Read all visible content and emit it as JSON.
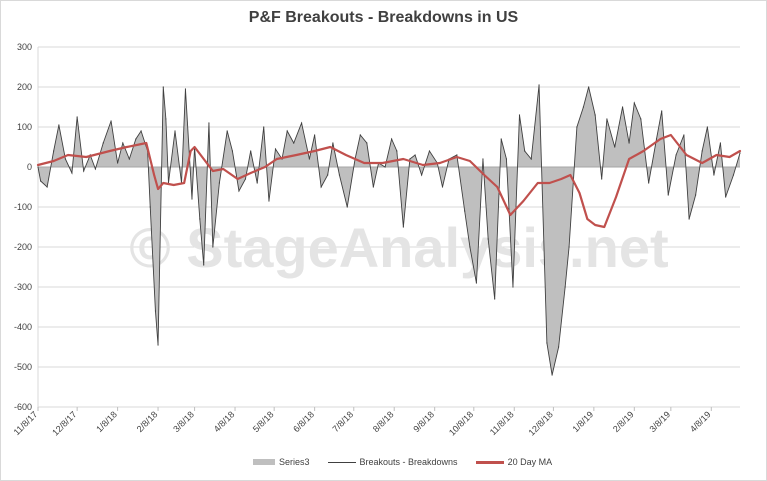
{
  "chart_data": {
    "type": "area",
    "title": "P&F Breakouts - Breakdowns in US",
    "watermark": "© StageAnalysis.net",
    "ylim": [
      -600,
      300
    ],
    "yticks": [
      300,
      200,
      100,
      0,
      -100,
      -200,
      -300,
      -400,
      -500,
      -600
    ],
    "xlim": [
      "2017-11-08",
      "2019-04-30"
    ],
    "xtick_labels": [
      "11/8/17",
      "12/8/17",
      "1/8/18",
      "2/8/18",
      "3/8/18",
      "4/8/18",
      "5/8/18",
      "6/8/18",
      "7/8/18",
      "8/8/18",
      "9/8/18",
      "10/8/18",
      "11/8/18",
      "12/8/18",
      "1/8/19",
      "2/8/19",
      "3/8/19",
      "4/8/19"
    ],
    "grid": true,
    "legend_position": "bottom",
    "colors": {
      "series3": "#bfbfbf",
      "breakouts": "#404040",
      "ma": "#c0504d"
    },
    "series": [
      {
        "name": "Series3",
        "style": "area",
        "same_values_as": "Breakouts - Breakdowns"
      },
      {
        "name": "Breakouts - Breakdowns",
        "style": "line",
        "x": [
          "2017-11-08",
          "2017-11-10",
          "2017-11-15",
          "2017-11-20",
          "2017-11-24",
          "2017-11-29",
          "2017-12-04",
          "2017-12-08",
          "2017-12-13",
          "2017-12-18",
          "2017-12-22",
          "2017-12-28",
          "2018-01-03",
          "2018-01-08",
          "2018-01-12",
          "2018-01-17",
          "2018-01-22",
          "2018-01-26",
          "2018-01-31",
          "2018-02-02",
          "2018-02-06",
          "2018-02-08",
          "2018-02-12",
          "2018-02-14",
          "2018-02-16",
          "2018-02-21",
          "2018-02-26",
          "2018-03-01",
          "2018-03-06",
          "2018-03-08",
          "2018-03-12",
          "2018-03-15",
          "2018-03-19",
          "2018-03-22",
          "2018-03-27",
          "2018-04-02",
          "2018-04-06",
          "2018-04-11",
          "2018-04-16",
          "2018-04-20",
          "2018-04-25",
          "2018-04-30",
          "2018-05-04",
          "2018-05-09",
          "2018-05-14",
          "2018-05-18",
          "2018-05-23",
          "2018-05-29",
          "2018-06-04",
          "2018-06-08",
          "2018-06-13",
          "2018-06-18",
          "2018-06-22",
          "2018-06-27",
          "2018-07-03",
          "2018-07-09",
          "2018-07-13",
          "2018-07-18",
          "2018-07-23",
          "2018-07-27",
          "2018-08-01",
          "2018-08-06",
          "2018-08-10",
          "2018-08-15",
          "2018-08-20",
          "2018-08-24",
          "2018-08-29",
          "2018-09-04",
          "2018-09-10",
          "2018-09-14",
          "2018-09-19",
          "2018-09-25",
          "2018-10-01",
          "2018-10-05",
          "2018-10-10",
          "2018-10-15",
          "2018-10-19",
          "2018-10-24",
          "2018-10-29",
          "2018-11-02",
          "2018-11-07",
          "2018-11-12",
          "2018-11-16",
          "2018-11-21",
          "2018-11-27",
          "2018-12-03",
          "2018-12-07",
          "2018-12-12",
          "2018-12-17",
          "2018-12-20",
          "2018-12-26",
          "2018-12-31",
          "2019-01-04",
          "2019-01-09",
          "2019-01-14",
          "2019-01-18",
          "2019-01-24",
          "2019-01-30",
          "2019-02-04",
          "2019-02-08",
          "2019-02-13",
          "2019-02-19",
          "2019-02-25",
          "2019-03-01",
          "2019-03-06",
          "2019-03-12",
          "2019-03-18",
          "2019-03-22",
          "2019-03-27",
          "2019-04-01",
          "2019-04-05",
          "2019-04-10",
          "2019-04-15",
          "2019-04-19",
          "2019-04-25",
          "2019-04-30"
        ],
        "values": [
          0,
          -35,
          -50,
          40,
          105,
          20,
          -15,
          125,
          -10,
          30,
          -5,
          60,
          115,
          10,
          60,
          20,
          70,
          90,
          40,
          -100,
          -360,
          -445,
          200,
          120,
          -40,
          90,
          -40,
          195,
          -80,
          50,
          -130,
          -245,
          110,
          -200,
          -40,
          90,
          40,
          -60,
          -30,
          40,
          -40,
          100,
          -85,
          45,
          20,
          90,
          60,
          110,
          20,
          80,
          -50,
          -20,
          60,
          -20,
          -100,
          20,
          80,
          60,
          -50,
          10,
          0,
          70,
          40,
          -150,
          20,
          30,
          -20,
          40,
          10,
          -50,
          20,
          30,
          -110,
          -200,
          -290,
          20,
          -180,
          -330,
          70,
          20,
          -300,
          130,
          40,
          20,
          205,
          -440,
          -520,
          -450,
          -300,
          -200,
          100,
          150,
          200,
          130,
          -30,
          120,
          50,
          150,
          60,
          160,
          120,
          -40,
          70,
          140,
          -70,
          30,
          80,
          -130,
          -70,
          40,
          100,
          -20,
          60,
          -75,
          -20,
          35
        ]
      },
      {
        "name": "20 Day MA",
        "style": "line",
        "x": [
          "2017-11-08",
          "2017-11-20",
          "2017-12-01",
          "2017-12-15",
          "2018-01-02",
          "2018-01-15",
          "2018-01-30",
          "2018-02-05",
          "2018-02-08",
          "2018-02-12",
          "2018-02-20",
          "2018-02-28",
          "2018-03-05",
          "2018-03-08",
          "2018-03-15",
          "2018-03-22",
          "2018-03-30",
          "2018-04-10",
          "2018-04-20",
          "2018-05-01",
          "2018-05-10",
          "2018-05-25",
          "2018-06-08",
          "2018-06-20",
          "2018-07-02",
          "2018-07-16",
          "2018-07-30",
          "2018-08-15",
          "2018-08-30",
          "2018-09-12",
          "2018-09-25",
          "2018-10-05",
          "2018-10-16",
          "2018-10-26",
          "2018-11-05",
          "2018-11-15",
          "2018-11-26",
          "2018-12-05",
          "2018-12-14",
          "2018-12-21",
          "2018-12-28",
          "2019-01-03",
          "2019-01-09",
          "2019-01-16",
          "2019-01-25",
          "2019-02-04",
          "2019-02-15",
          "2019-02-28",
          "2019-03-08",
          "2019-03-20",
          "2019-04-01",
          "2019-04-12",
          "2019-04-22",
          "2019-04-30"
        ],
        "values": [
          5,
          15,
          30,
          25,
          40,
          50,
          60,
          -20,
          -55,
          -40,
          -45,
          -40,
          40,
          50,
          20,
          -10,
          -5,
          -30,
          -15,
          0,
          20,
          30,
          40,
          50,
          30,
          10,
          10,
          20,
          5,
          10,
          25,
          15,
          -20,
          -50,
          -120,
          -85,
          -40,
          -40,
          -30,
          -20,
          -65,
          -130,
          -145,
          -150,
          -75,
          20,
          40,
          70,
          80,
          30,
          10,
          30,
          25,
          40
        ]
      }
    ]
  }
}
